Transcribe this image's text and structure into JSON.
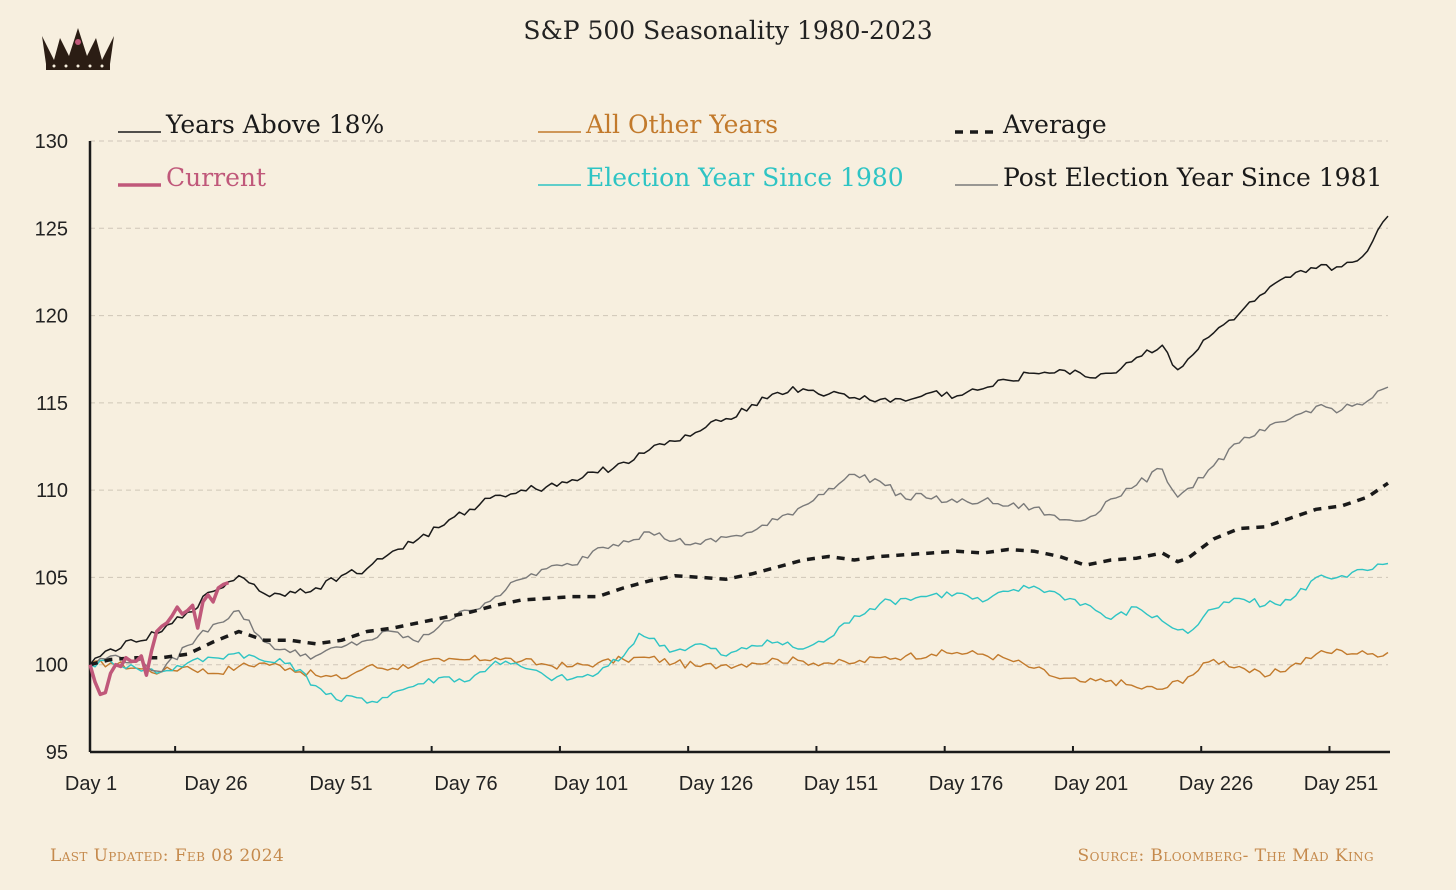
{
  "header": {
    "title": "S&P 500 Seasonality 1980-2023",
    "logo_icon": "crown-icon"
  },
  "footer": {
    "last_updated": "Last Updated: Feb 08 2024",
    "source": "Source: Bloomberg- The Mad King"
  },
  "colors": {
    "background": "#f7efdf",
    "years_above": "#1a1a1a",
    "other": "#c27a2c",
    "average": "#1a1a1a",
    "current": "#c0587a",
    "election": "#2ec4c4",
    "post_election": "#7a7a7a",
    "grid": "#cfc6b8",
    "footer": "#c58a4d"
  },
  "chart_data": {
    "type": "line",
    "title": "S&P 500 Seasonality 1980-2023",
    "xlabel": "",
    "ylabel": "",
    "xlim": [
      1,
      254
    ],
    "ylim": [
      95,
      130
    ],
    "y_ticks": [
      95,
      100,
      105,
      110,
      115,
      120,
      125,
      130
    ],
    "x_ticks": [
      1,
      26,
      51,
      76,
      101,
      126,
      151,
      176,
      201,
      226,
      251
    ],
    "x_tick_labels": [
      "Day 1",
      "Day 26",
      "Day 51",
      "Day 76",
      "Day 101",
      "Day 126",
      "Day 151",
      "Day 176",
      "Day 201",
      "Day 226",
      "Day 251"
    ],
    "grid": "horizontal dashed",
    "legend_placement": "top, 3 columns x 2 rows",
    "series": [
      {
        "name": "Years Above 18%",
        "color_key": "years_above",
        "style": "thin",
        "x": [
          1,
          5,
          10,
          15,
          20,
          25,
          30,
          33,
          36,
          40,
          45,
          50,
          55,
          60,
          65,
          70,
          75,
          80,
          85,
          90,
          95,
          100,
          105,
          110,
          115,
          120,
          125,
          130,
          135,
          140,
          145,
          150,
          155,
          160,
          165,
          170,
          175,
          180,
          185,
          190,
          195,
          200,
          205,
          210,
          213,
          215,
          220,
          225,
          230,
          235,
          240,
          245,
          250,
          254
        ],
        "values": [
          100,
          100.9,
          101.3,
          101.9,
          103.0,
          104.2,
          105.1,
          104.6,
          103.9,
          104.2,
          104.4,
          105.1,
          105.5,
          106.5,
          107.2,
          108.0,
          108.9,
          109.7,
          110.0,
          110.2,
          110.6,
          111.0,
          111.6,
          112.3,
          112.8,
          113.4,
          114.1,
          114.9,
          115.6,
          115.8,
          115.5,
          115.3,
          115.2,
          115.1,
          115.6,
          115.4,
          115.8,
          116.3,
          116.7,
          116.9,
          116.5,
          116.7,
          117.6,
          118.3,
          116.9,
          117.5,
          119.0,
          120.1,
          121.3,
          122.2,
          122.7,
          122.8,
          123.7,
          125.7
        ]
      },
      {
        "name": "All Other Years",
        "color_key": "other",
        "style": "thin",
        "x": [
          1,
          5,
          10,
          15,
          20,
          25,
          30,
          35,
          40,
          45,
          50,
          55,
          60,
          65,
          70,
          75,
          80,
          85,
          90,
          95,
          100,
          105,
          110,
          115,
          120,
          125,
          130,
          135,
          140,
          145,
          150,
          155,
          160,
          165,
          170,
          175,
          180,
          185,
          190,
          195,
          200,
          205,
          210,
          215,
          220,
          225,
          230,
          235,
          240,
          245,
          250,
          254
        ],
        "values": [
          100,
          100.1,
          99.8,
          99.6,
          99.9,
          99.5,
          99.9,
          100.1,
          99.8,
          99.4,
          99.2,
          99.9,
          99.8,
          100.1,
          100.2,
          100.3,
          100.4,
          100.2,
          100.0,
          99.9,
          100.1,
          100.3,
          100.4,
          100.1,
          99.9,
          100.0,
          100.1,
          100.3,
          100.2,
          100.1,
          100.1,
          100.4,
          100.5,
          100.6,
          100.7,
          100.6,
          100.3,
          99.8,
          99.2,
          99.0,
          99.1,
          98.7,
          98.6,
          99.3,
          100.3,
          99.9,
          99.3,
          99.9,
          100.6,
          100.8,
          100.6,
          100.7
        ]
      },
      {
        "name": "Average",
        "color_key": "average",
        "style": "dashed",
        "x": [
          1,
          5,
          10,
          15,
          20,
          25,
          30,
          35,
          40,
          45,
          50,
          55,
          60,
          65,
          70,
          75,
          80,
          85,
          90,
          95,
          100,
          105,
          110,
          115,
          120,
          125,
          130,
          135,
          140,
          145,
          150,
          155,
          160,
          165,
          170,
          175,
          180,
          185,
          190,
          195,
          200,
          205,
          210,
          213,
          215,
          220,
          225,
          230,
          235,
          240,
          245,
          250,
          254
        ],
        "values": [
          100,
          100.3,
          100.4,
          100.4,
          100.6,
          101.3,
          101.9,
          101.4,
          101.4,
          101.2,
          101.4,
          101.9,
          102.1,
          102.4,
          102.7,
          103.0,
          103.4,
          103.7,
          103.8,
          103.9,
          103.9,
          104.4,
          104.8,
          105.1,
          105.0,
          104.9,
          105.2,
          105.6,
          106.0,
          106.2,
          106.0,
          106.2,
          106.3,
          106.4,
          106.5,
          106.4,
          106.6,
          106.5,
          106.2,
          105.7,
          106.0,
          106.1,
          106.4,
          105.9,
          106.1,
          107.2,
          107.8,
          107.9,
          108.4,
          108.9,
          109.1,
          109.6,
          110.4
        ]
      },
      {
        "name": "Current",
        "color_key": "current",
        "style": "thick",
        "x": [
          1,
          2,
          3,
          4,
          5,
          6,
          7,
          8,
          9,
          10,
          11,
          12,
          13,
          14,
          15,
          16,
          17,
          18,
          19,
          20,
          21,
          22,
          23,
          24,
          25,
          26,
          27,
          28
        ],
        "values": [
          100,
          99.0,
          98.3,
          98.4,
          99.5,
          100.0,
          99.9,
          100.4,
          100.2,
          100.2,
          100.5,
          99.4,
          100.8,
          101.9,
          102.2,
          102.4,
          102.8,
          103.3,
          102.9,
          103.1,
          103.4,
          102.1,
          103.6,
          104.0,
          103.6,
          104.4,
          104.6,
          104.7
        ]
      },
      {
        "name": "Election Year Since 1980",
        "color_key": "election",
        "style": "thin",
        "x": [
          1,
          5,
          10,
          15,
          20,
          25,
          30,
          35,
          40,
          45,
          50,
          52,
          55,
          60,
          65,
          70,
          75,
          80,
          85,
          90,
          95,
          100,
          105,
          108,
          110,
          115,
          120,
          125,
          130,
          135,
          140,
          145,
          150,
          155,
          160,
          165,
          170,
          175,
          180,
          185,
          190,
          195,
          200,
          205,
          210,
          215,
          220,
          225,
          230,
          235,
          240,
          245,
          250,
          254
        ],
        "values": [
          100,
          100.2,
          99.8,
          99.6,
          100.1,
          100.4,
          100.7,
          100.2,
          100.1,
          98.8,
          97.9,
          98.2,
          97.8,
          98.4,
          98.9,
          99.3,
          99.1,
          100.2,
          99.9,
          99.3,
          99.2,
          99.5,
          100.5,
          101.8,
          101.5,
          100.8,
          101.2,
          100.5,
          101.1,
          101.3,
          100.9,
          101.5,
          102.8,
          103.5,
          103.8,
          104.0,
          104.1,
          103.6,
          104.2,
          104.5,
          104.0,
          103.5,
          102.6,
          103.3,
          102.5,
          101.8,
          103.2,
          103.8,
          103.4,
          103.7,
          105.0,
          105.1,
          105.4,
          105.8
        ]
      },
      {
        "name": "Post Election Year Since 1981",
        "color_key": "post_election",
        "style": "thin",
        "x": [
          1,
          5,
          10,
          15,
          20,
          25,
          30,
          35,
          40,
          45,
          50,
          55,
          60,
          65,
          70,
          75,
          80,
          85,
          90,
          95,
          100,
          105,
          110,
          115,
          120,
          125,
          130,
          135,
          140,
          145,
          150,
          155,
          160,
          163,
          165,
          170,
          175,
          180,
          185,
          190,
          195,
          200,
          205,
          210,
          213,
          215,
          220,
          225,
          230,
          235,
          240,
          245,
          250,
          254
        ],
        "values": [
          100,
          100.5,
          100.2,
          99.6,
          101.1,
          102.3,
          103.1,
          101.3,
          100.7,
          100.5,
          101.0,
          101.4,
          101.9,
          101.3,
          102.5,
          103.1,
          103.9,
          104.9,
          105.5,
          105.7,
          106.7,
          107.1,
          107.6,
          107.1,
          106.9,
          107.3,
          107.6,
          108.3,
          109.1,
          110.1,
          110.9,
          110.5,
          109.5,
          109.8,
          109.5,
          109.3,
          109.4,
          109.1,
          109.0,
          108.3,
          108.3,
          109.5,
          110.3,
          111.2,
          109.6,
          110.1,
          111.4,
          112.7,
          113.4,
          114.1,
          114.8,
          114.6,
          115.1,
          115.9
        ]
      }
    ]
  }
}
